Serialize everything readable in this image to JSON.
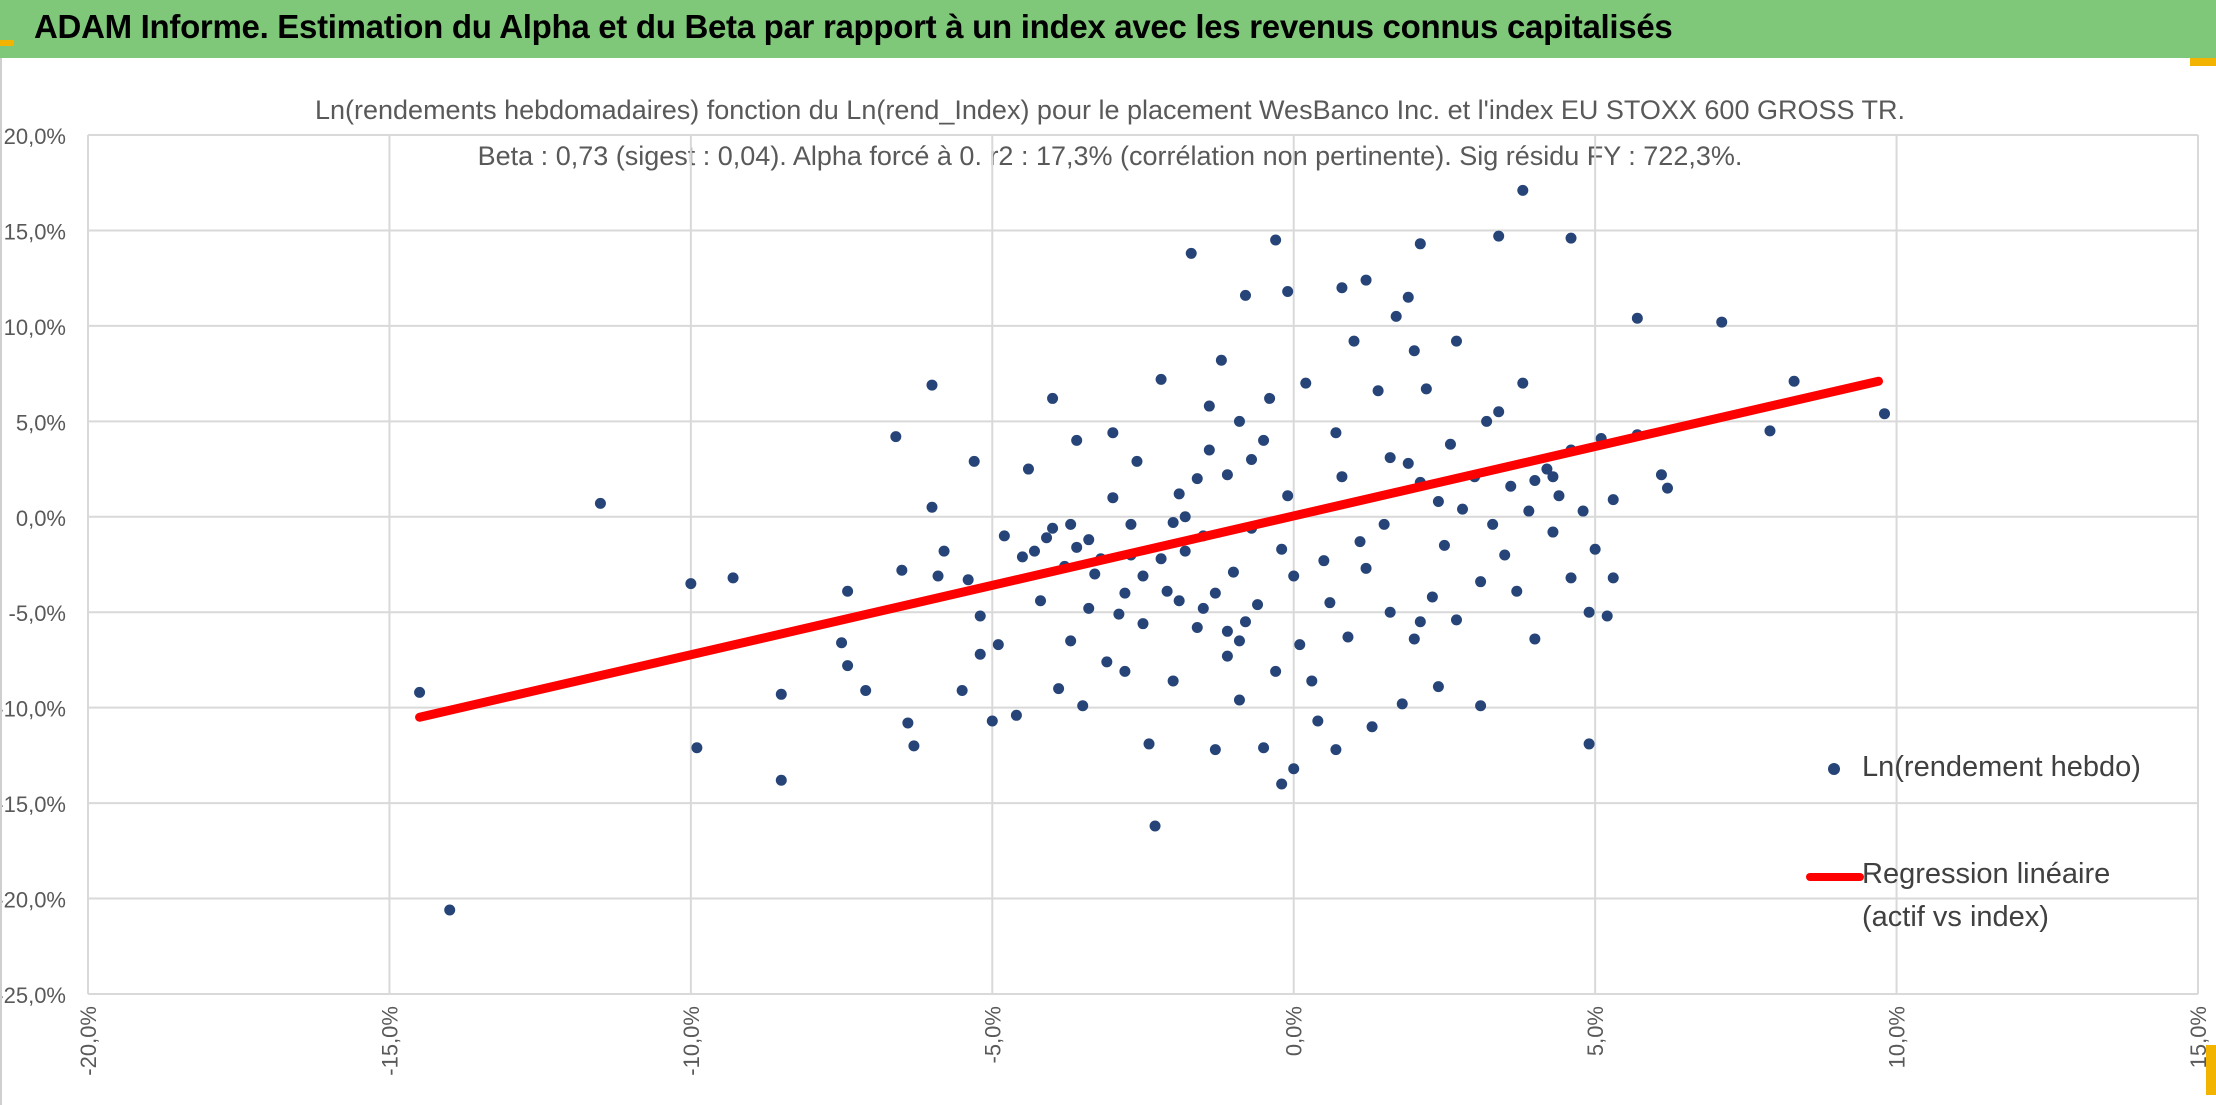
{
  "header": {
    "title": "ADAM Informe. Estimation du Alpha et du Beta par rapport à un index avec les revenus connus capitalisés"
  },
  "chart_data": {
    "type": "scatter",
    "title_line1": "Ln(rendements hebdomadaires) fonction du Ln(rend_Index) pour le placement WesBanco Inc. et l'index EU STOXX 600 GROSS TR.",
    "title_line2": "Beta : 0,73 (sigest : 0,04). Alpha forcé à 0. r2 : 17,3% (corrélation non pertinente). Sig résidu FY : 722,3%.",
    "xlim": [
      -0.2,
      0.15
    ],
    "ylim": [
      -0.25,
      0.2
    ],
    "x_ticks": [
      -0.2,
      -0.15,
      -0.1,
      -0.05,
      0.0,
      0.05,
      0.1,
      0.15
    ],
    "x_tick_labels": [
      "-20,0%",
      "-15,0%",
      "-10,0%",
      "-5,0%",
      "0,0%",
      "5,0%",
      "10,0%",
      "15,0%"
    ],
    "y_ticks": [
      0.2,
      0.15,
      0.1,
      0.05,
      0.0,
      -0.05,
      -0.1,
      -0.15,
      -0.2,
      -0.25
    ],
    "y_tick_labels": [
      "20,0%",
      "15,0%",
      "10,0%",
      "5,0%",
      "0,0%",
      "-5,0%",
      "-10,0%",
      "-15,0%",
      "-20,0%",
      "-25,0%"
    ],
    "grid": true,
    "legend_position": "right",
    "colors": {
      "points": "#264478",
      "regression": "#ff0000",
      "grid": "#d9d9d9"
    },
    "series": [
      {
        "name": "Ln(rendement hebdo)",
        "kind": "points",
        "points": [
          [
            -0.145,
            -0.092
          ],
          [
            -0.14,
            -0.206
          ],
          [
            -0.115,
            0.007
          ],
          [
            -0.1,
            -0.035
          ],
          [
            -0.099,
            -0.121
          ],
          [
            -0.093,
            -0.032
          ],
          [
            -0.085,
            -0.093
          ],
          [
            -0.085,
            -0.138
          ],
          [
            -0.075,
            -0.066
          ],
          [
            -0.074,
            -0.039
          ],
          [
            -0.074,
            -0.078
          ],
          [
            -0.071,
            -0.091
          ],
          [
            -0.066,
            0.042
          ],
          [
            -0.065,
            -0.028
          ],
          [
            -0.064,
            -0.108
          ],
          [
            -0.063,
            -0.12
          ],
          [
            -0.06,
            0.069
          ],
          [
            -0.06,
            0.005
          ],
          [
            -0.059,
            -0.031
          ],
          [
            -0.058,
            -0.018
          ],
          [
            -0.055,
            -0.091
          ],
          [
            -0.054,
            -0.033
          ],
          [
            -0.052,
            -0.052
          ],
          [
            -0.052,
            -0.072
          ],
          [
            -0.053,
            0.029
          ],
          [
            -0.05,
            -0.107
          ],
          [
            -0.049,
            -0.067
          ],
          [
            -0.048,
            -0.01
          ],
          [
            -0.046,
            -0.104
          ],
          [
            -0.045,
            -0.021
          ],
          [
            -0.044,
            0.025
          ],
          [
            -0.043,
            -0.018
          ],
          [
            -0.042,
            -0.044
          ],
          [
            -0.041,
            -0.011
          ],
          [
            -0.04,
            -0.006
          ],
          [
            -0.04,
            0.062
          ],
          [
            -0.039,
            -0.09
          ],
          [
            -0.038,
            -0.026
          ],
          [
            -0.037,
            -0.065
          ],
          [
            -0.037,
            -0.004
          ],
          [
            -0.036,
            0.04
          ],
          [
            -0.035,
            -0.099
          ],
          [
            -0.034,
            -0.012
          ],
          [
            -0.034,
            -0.048
          ],
          [
            -0.032,
            -0.022
          ],
          [
            -0.031,
            -0.076
          ],
          [
            -0.03,
            0.044
          ],
          [
            -0.03,
            0.01
          ],
          [
            -0.029,
            -0.051
          ],
          [
            -0.028,
            -0.081
          ],
          [
            -0.027,
            -0.02
          ],
          [
            -0.026,
            0.029
          ],
          [
            -0.025,
            -0.056
          ],
          [
            -0.024,
            -0.119
          ],
          [
            -0.023,
            -0.162
          ],
          [
            -0.022,
            0.072
          ],
          [
            -0.021,
            -0.039
          ],
          [
            -0.02,
            -0.086
          ],
          [
            -0.019,
            0.012
          ],
          [
            -0.018,
            -0.018
          ],
          [
            -0.017,
            0.138
          ],
          [
            -0.016,
            -0.058
          ],
          [
            -0.015,
            -0.01
          ],
          [
            -0.014,
            0.058
          ],
          [
            -0.013,
            -0.122
          ],
          [
            -0.012,
            0.082
          ],
          [
            -0.011,
            -0.073
          ],
          [
            -0.01,
            -0.029
          ],
          [
            -0.009,
            -0.096
          ],
          [
            -0.008,
            0.116
          ],
          [
            -0.007,
            -0.006
          ],
          [
            -0.006,
            -0.046
          ],
          [
            -0.005,
            -0.121
          ],
          [
            -0.004,
            0.062
          ],
          [
            -0.003,
            -0.081
          ],
          [
            -0.002,
            -0.017
          ],
          [
            -0.001,
            0.011
          ],
          [
            0.0,
            -0.031
          ],
          [
            0.001,
            -0.067
          ],
          [
            0.002,
            0.07
          ],
          [
            0.003,
            -0.086
          ],
          [
            0.004,
            -0.107
          ],
          [
            0.005,
            -0.023
          ],
          [
            0.006,
            -0.045
          ],
          [
            0.007,
            0.044
          ],
          [
            0.008,
            0.021
          ],
          [
            0.009,
            -0.063
          ],
          [
            0.01,
            0.092
          ],
          [
            0.011,
            -0.013
          ],
          [
            0.012,
            -0.027
          ],
          [
            0.013,
            -0.11
          ],
          [
            0.014,
            0.066
          ],
          [
            0.015,
            -0.004
          ],
          [
            0.016,
            0.031
          ],
          [
            0.018,
            -0.098
          ],
          [
            0.019,
            0.028
          ],
          [
            0.02,
            -0.064
          ],
          [
            0.021,
            0.018
          ],
          [
            0.022,
            0.067
          ],
          [
            0.023,
            -0.042
          ],
          [
            0.024,
            0.008
          ],
          [
            0.025,
            -0.015
          ],
          [
            0.026,
            0.038
          ],
          [
            0.027,
            -0.054
          ],
          [
            0.028,
            0.004
          ],
          [
            0.03,
            0.021
          ],
          [
            0.031,
            -0.034
          ],
          [
            0.032,
            0.05
          ],
          [
            0.033,
            -0.004
          ],
          [
            0.034,
            0.055
          ],
          [
            0.035,
            -0.02
          ],
          [
            0.036,
            0.016
          ],
          [
            0.037,
            -0.039
          ],
          [
            0.038,
            0.07
          ],
          [
            0.039,
            0.003
          ],
          [
            0.04,
            -0.064
          ],
          [
            0.042,
            0.025
          ],
          [
            0.043,
            -0.008
          ],
          [
            0.044,
            0.011
          ],
          [
            0.046,
            -0.032
          ],
          [
            0.046,
            0.035
          ],
          [
            0.048,
            0.003
          ],
          [
            0.05,
            -0.017
          ],
          [
            0.051,
            0.041
          ],
          [
            0.053,
            0.009
          ],
          [
            -0.003,
            0.145
          ],
          [
            -0.001,
            0.118
          ],
          [
            0.008,
            0.12
          ],
          [
            0.012,
            0.124
          ],
          [
            0.017,
            0.105
          ],
          [
            0.019,
            0.115
          ],
          [
            0.021,
            0.143
          ],
          [
            0.02,
            0.087
          ],
          [
            0.027,
            0.092
          ],
          [
            0.034,
            0.147
          ],
          [
            0.038,
            0.171
          ],
          [
            0.046,
            0.146
          ],
          [
            0.057,
            0.104
          ],
          [
            0.071,
            0.102
          ],
          [
            0.083,
            0.071
          ],
          [
            0.098,
            0.054
          ],
          [
            0.079,
            0.045
          ],
          [
            0.061,
            0.022
          ],
          [
            0.062,
            0.015
          ],
          [
            0.057,
            0.043
          ],
          [
            0.053,
            -0.032
          ],
          [
            0.052,
            -0.052
          ],
          [
            0.049,
            -0.05
          ],
          [
            0.049,
            -0.119
          ],
          [
            0.031,
            -0.099
          ],
          [
            0.024,
            -0.089
          ],
          [
            0.021,
            -0.055
          ],
          [
            0.016,
            -0.05
          ],
          [
            0.043,
            0.021
          ],
          [
            0.04,
            0.019
          ],
          [
            -0.009,
            -0.065
          ],
          [
            -0.008,
            -0.055
          ],
          [
            -0.011,
            -0.06
          ],
          [
            -0.013,
            -0.04
          ],
          [
            -0.015,
            -0.048
          ],
          [
            -0.019,
            -0.044
          ],
          [
            -0.022,
            -0.022
          ],
          [
            -0.025,
            -0.031
          ],
          [
            -0.027,
            -0.004
          ],
          [
            -0.028,
            -0.04
          ],
          [
            -0.033,
            -0.03
          ],
          [
            -0.036,
            -0.016
          ],
          [
            -0.007,
            0.03
          ],
          [
            -0.005,
            0.04
          ],
          [
            -0.009,
            0.05
          ],
          [
            -0.011,
            0.022
          ],
          [
            -0.014,
            0.035
          ],
          [
            -0.016,
            0.02
          ],
          [
            -0.018,
            0.0
          ],
          [
            -0.02,
            -0.003
          ],
          [
            -0.002,
            -0.14
          ],
          [
            0.0,
            -0.132
          ],
          [
            0.007,
            -0.122
          ]
        ]
      },
      {
        "name": "Regression linéaire",
        "name_line2": "(actif vs index)",
        "kind": "line",
        "points": [
          [
            -0.145,
            -0.105
          ],
          [
            0.097,
            0.071
          ]
        ]
      }
    ]
  }
}
